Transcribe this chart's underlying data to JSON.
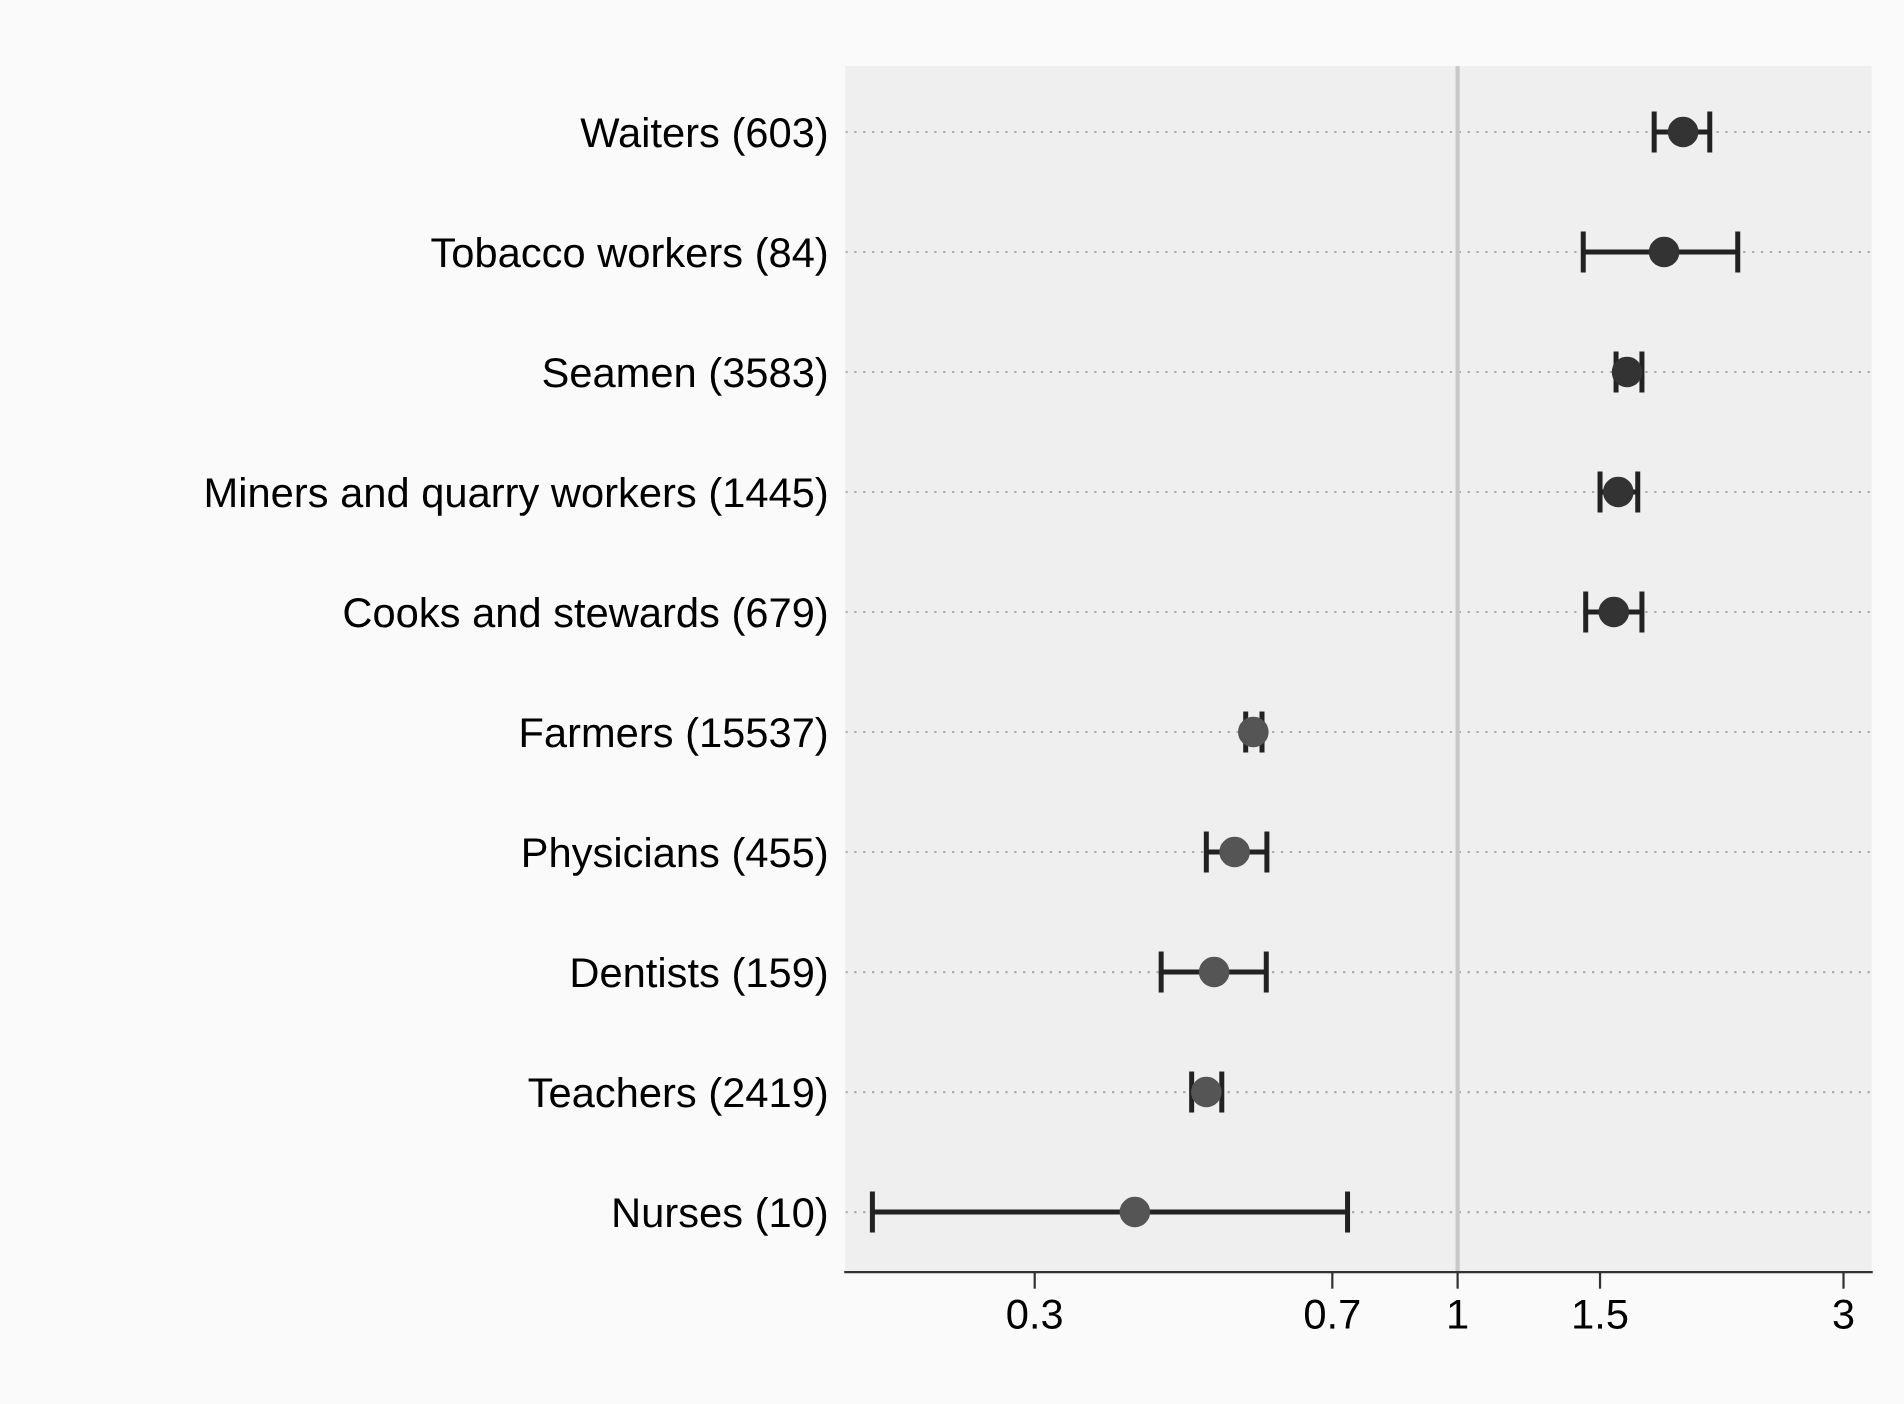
{
  "chart_data": {
    "type": "scatter",
    "orientation": "horizontal",
    "log": "x",
    "categories": [
      "Waiters (603)",
      "Tobacco workers (84)",
      "Seamen (3583)",
      "Miners and quarry workers (1445)",
      "Cooks and stewards (679)",
      "Farmers (15537)",
      "Physicians (455)",
      "Dentists (159)",
      "Teachers (2419)",
      "Nurses (10)"
    ],
    "values": [
      1.9,
      1.8,
      1.62,
      1.58,
      1.56,
      0.559,
      0.53,
      0.5,
      0.489,
      0.399
    ],
    "errors": [
      [
        1.75,
        2.05
      ],
      [
        1.43,
        2.22
      ],
      [
        1.57,
        1.69
      ],
      [
        1.5,
        1.67
      ],
      [
        1.44,
        1.69
      ],
      [
        0.547,
        0.573
      ],
      [
        0.489,
        0.581
      ],
      [
        0.43,
        0.58
      ],
      [
        0.469,
        0.511
      ],
      [
        0.189,
        0.731
      ]
    ],
    "colors": [
      "#333333",
      "#333333",
      "#333333",
      "#333333",
      "#333333",
      "#555555",
      "#555555",
      "#555555",
      "#555555",
      "#555555"
    ],
    "xlim": [
      0.175,
      3.25
    ],
    "xticks": [
      0.3,
      0.7,
      1,
      1.5,
      3
    ],
    "ref_lines": [
      {
        "axis": "x",
        "value": 1,
        "color": "#c8c8c8"
      }
    ],
    "grid": "y",
    "marker": "circle"
  }
}
